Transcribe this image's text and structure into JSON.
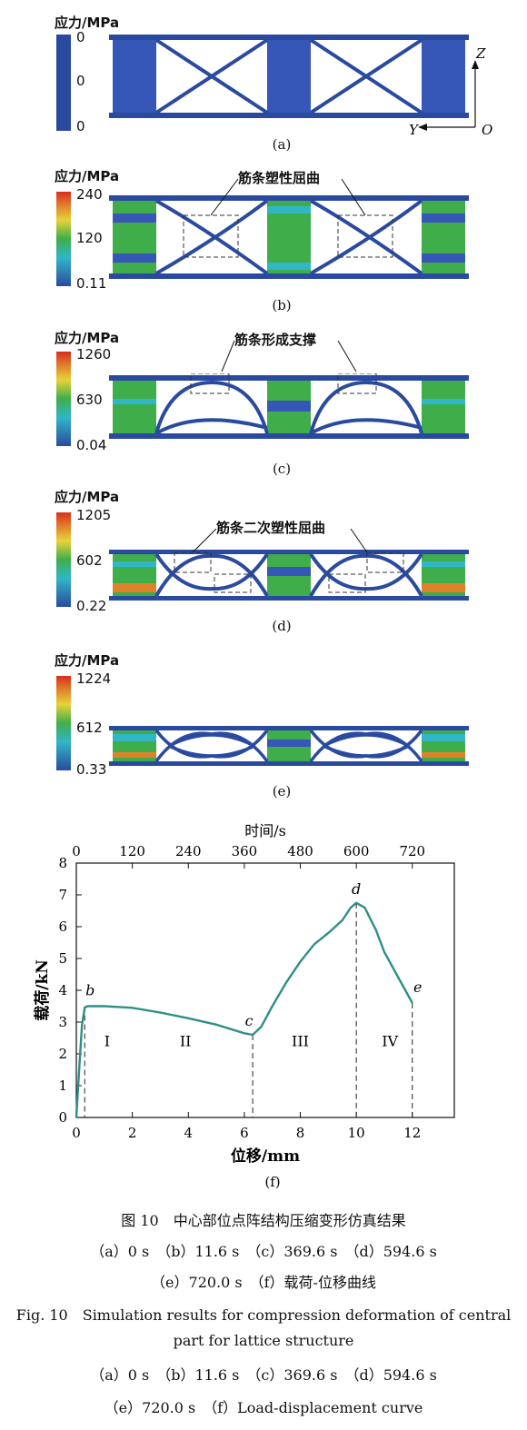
{
  "colorbar_title": "应力/MPa",
  "colors": {
    "rib": "#2a4aa0",
    "block": "#3656b8",
    "green": "#3fae4a",
    "cyan": "#31b6c8",
    "yellow": "#e8d23a",
    "orange": "#e0822a",
    "red": "#d92e1f",
    "curve": "#2e8f86"
  },
  "panels": [
    {
      "label": "(a)",
      "cbar": [
        "0",
        "0",
        "0"
      ],
      "annotation": ""
    },
    {
      "label": "(b)",
      "cbar": [
        "240",
        "120",
        "0.11"
      ],
      "annotation": "筋条塑性屈曲"
    },
    {
      "label": "(c)",
      "cbar": [
        "1260",
        "630",
        "0.04"
      ],
      "annotation": "筋条形成支撑"
    },
    {
      "label": "(d)",
      "cbar": [
        "1205",
        "602",
        "0.22"
      ],
      "annotation": "筋条二次塑性屈曲"
    },
    {
      "label": "(e)",
      "cbar": [
        "1224",
        "612",
        "0.33"
      ],
      "annotation": ""
    }
  ],
  "axes_labels": {
    "z": "Z",
    "y": "Y",
    "o": "O"
  },
  "chart_label": "(f)",
  "chart_data": {
    "type": "line",
    "title": "",
    "xlabel": "位移/mm",
    "ylabel": "载荷/kN",
    "x2label": "时间/s",
    "xlim": [
      0,
      13.5
    ],
    "ylim": [
      0,
      8
    ],
    "x2lim": [
      0,
      810
    ],
    "xticks": [
      0,
      2,
      4,
      6,
      8,
      10,
      12
    ],
    "yticks": [
      0,
      1,
      2,
      3,
      4,
      5,
      6,
      7,
      8
    ],
    "x2ticks": [
      0,
      120,
      240,
      360,
      480,
      600,
      720
    ],
    "series": [
      {
        "name": "",
        "x": [
          0,
          0.1,
          0.2,
          0.3,
          0.4,
          0.6,
          1,
          2,
          3,
          4,
          5,
          6,
          6.3,
          6.6,
          7,
          7.5,
          8,
          8.5,
          9,
          9.5,
          9.8,
          10,
          10.3,
          10.7,
          11,
          11.5,
          12
        ],
        "y": [
          0,
          1.5,
          2.9,
          3.45,
          3.5,
          3.5,
          3.5,
          3.45,
          3.3,
          3.12,
          2.92,
          2.65,
          2.6,
          2.85,
          3.5,
          4.25,
          4.9,
          5.45,
          5.8,
          6.2,
          6.6,
          6.75,
          6.6,
          5.9,
          5.2,
          4.4,
          3.6
        ]
      }
    ],
    "points": [
      {
        "label": "b",
        "x": 0.3,
        "y": 3.5
      },
      {
        "label": "c",
        "x": 6.3,
        "y": 2.6
      },
      {
        "label": "d",
        "x": 10,
        "y": 6.75
      },
      {
        "label": "e",
        "x": 12,
        "y": 3.6
      }
    ],
    "region_lines_x": [
      0.3,
      6.3,
      10,
      12
    ],
    "regions": [
      {
        "label": "I",
        "x": 1.1,
        "y": 2.25
      },
      {
        "label": "II",
        "x": 3.9,
        "y": 2.25
      },
      {
        "label": "III",
        "x": 8,
        "y": 2.25
      },
      {
        "label": "IV",
        "x": 11.2,
        "y": 2.25
      }
    ]
  },
  "caption": {
    "cn_title": "图 10　中心部位点阵结构压缩变形仿真结果",
    "cn_line1": "（a）0 s　（b）11.6 s　（c）369.6 s　（d）594.6 s",
    "cn_line2": "（e）720.0 s　（f）载荷-位移曲线",
    "en_title1": "Fig. 10　Simulation results for compression deformation of central",
    "en_title2": "part for lattice structure",
    "en_line1": "（a）0 s　（b）11.6 s　（c）369.6 s　（d）594.6 s",
    "en_line2": "（e）720.0 s　（f）Load-displacement curve"
  }
}
